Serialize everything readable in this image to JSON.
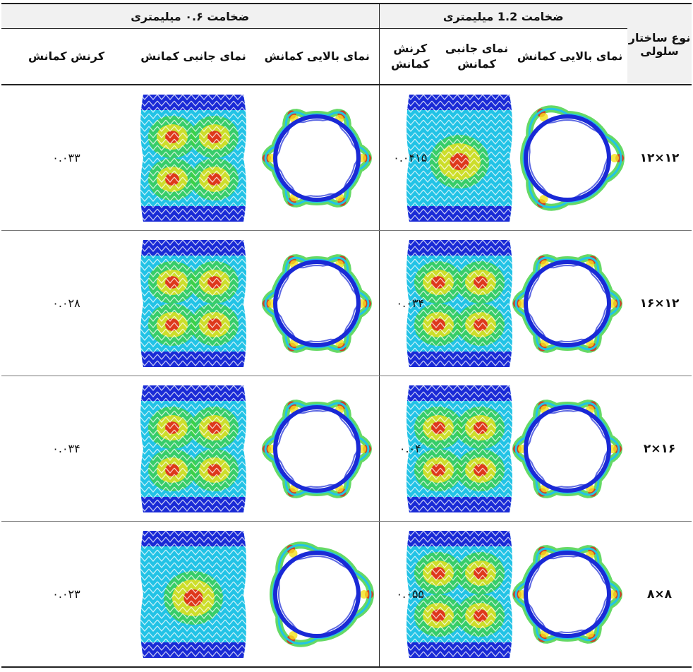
{
  "header": {
    "type_label": "نوع ساختار سلولی",
    "group_1": "ضخامت 1.2 میلیمتری",
    "group_2": "ضخامت ۰.۶ میلیمتری",
    "col_top_view": "نمای بالایی کمانش",
    "col_side_view": "نمای جانبی کمانش",
    "col_strain": "کرنش کمانش"
  },
  "rows": [
    {
      "type": "۱۲×۱۲",
      "strain_12": "۰.۰۴۱۵",
      "strain_06": "۰.۰۳۳",
      "lobes_12": 3,
      "lobes_06": 6
    },
    {
      "type": "۱۲×۱۶",
      "strain_12": "۰.۰۳۴",
      "strain_06": "۰.۰۲۸",
      "lobes_12": 6,
      "lobes_06": 6
    },
    {
      "type": "۱۶×۲",
      "strain_12": "۰.۰۴",
      "strain_06": "۰.۰۳۴",
      "lobes_12": 6,
      "lobes_06": 6
    },
    {
      "type": "۸×۸",
      "strain_12": "۰.۰۵۵",
      "strain_06": "۰.۰۲۳",
      "lobes_12": 6,
      "lobes_06": 3
    }
  ],
  "colors": {
    "mesh_blue": "#1a2ad6",
    "mesh_cyan": "#22c3e6",
    "mesh_green": "#3fd03f",
    "mesh_yellow": "#f2e21b",
    "mesh_red": "#e0261b"
  }
}
